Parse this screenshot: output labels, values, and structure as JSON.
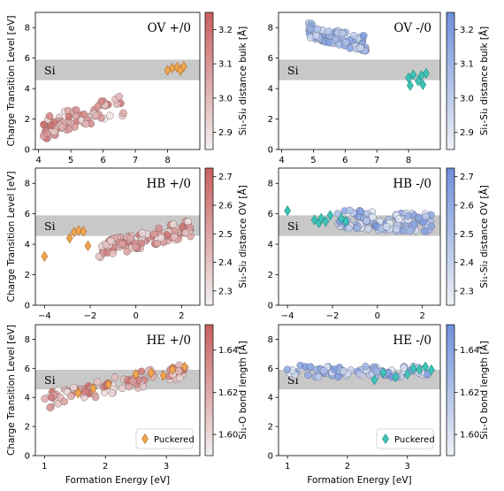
{
  "figure": {
    "xlabel": "Formation Energy [eV]",
    "ylabel": "Charge Transition Level [eV]",
    "band_label": "Si",
    "legend_label": "Puckered"
  },
  "colors": {
    "red_low": "#f2f0f0",
    "red_high": "#c95f5f",
    "blue_low": "#eff1f5",
    "blue_high": "#6e90dc",
    "puckered_orange": "#f0a552",
    "puckered_teal": "#3fc4b8",
    "band_gray": "#c8c8c8"
  },
  "chart_data": [
    {
      "type": "scatter",
      "title": "OV +/0",
      "colormap": "reds",
      "colorbar": {
        "label": "Si₁-Si₂ distance bulk [Å]",
        "ticks": [
          "2.9",
          "3.0",
          "3.1",
          "3.2"
        ],
        "range": [
          2.85,
          3.25
        ]
      },
      "xlim": [
        3.9,
        9.0
      ],
      "ylim": [
        0,
        9
      ],
      "xticks": [
        "4",
        "5",
        "6",
        "7",
        "8"
      ],
      "yticks": [
        "0",
        "2",
        "4",
        "6",
        "8"
      ],
      "band": [
        4.55,
        5.9
      ],
      "cloud": {
        "seed": 11,
        "n": 80,
        "x": [
          4.1,
          6.65
        ],
        "y_start": 1.35,
        "y_slope": 0.62,
        "spread": 0.9,
        "c_range": [
          2.86,
          3.22
        ]
      },
      "puckered": [
        [
          8.0,
          5.2
        ],
        [
          8.15,
          5.35
        ],
        [
          8.3,
          5.4
        ],
        [
          8.4,
          5.2
        ],
        [
          8.5,
          5.45
        ]
      ]
    },
    {
      "type": "scatter",
      "title": "OV -/0",
      "colormap": "blues",
      "colorbar": {
        "label": "Si₁-Si₂ distance bulk [Å]",
        "ticks": [
          "2.9",
          "3.0",
          "3.1",
          "3.2"
        ],
        "range": [
          2.85,
          3.25
        ]
      },
      "xlim": [
        3.9,
        9.0
      ],
      "ylim": [
        0,
        9
      ],
      "xticks": [
        "4",
        "5",
        "6",
        "7",
        "8"
      ],
      "yticks": [
        "0",
        "2",
        "4",
        "6",
        "8"
      ],
      "band": [
        4.55,
        5.9
      ],
      "cloud": {
        "seed": 23,
        "n": 80,
        "x": [
          4.8,
          6.65
        ],
        "y_start": 7.85,
        "y_slope": -0.5,
        "spread": 0.65,
        "c_range": [
          2.95,
          3.23
        ]
      },
      "puckered": [
        [
          8.0,
          4.7
        ],
        [
          8.05,
          4.2
        ],
        [
          8.15,
          4.9
        ],
        [
          8.3,
          4.5
        ],
        [
          8.4,
          4.85
        ],
        [
          8.45,
          4.25
        ],
        [
          8.55,
          5.0
        ]
      ]
    },
    {
      "type": "scatter",
      "title": "HB +/0",
      "colormap": "reds",
      "colorbar": {
        "label": "Si₁-Si₂ distance OV [Å]",
        "ticks": [
          "2.3",
          "2.4",
          "2.5",
          "2.6",
          "2.7"
        ],
        "range": [
          2.25,
          2.73
        ]
      },
      "xlim": [
        -4.4,
        2.8
      ],
      "ylim": [
        0,
        9
      ],
      "xticks": [
        "−4",
        "−2",
        "0",
        "2"
      ],
      "yticks": [
        "0",
        "2",
        "4",
        "6",
        "8"
      ],
      "band": [
        4.55,
        5.9
      ],
      "cloud": {
        "seed": 37,
        "n": 110,
        "x": [
          -1.7,
          2.4
        ],
        "y_start": 3.6,
        "y_slope": 0.35,
        "spread": 0.7,
        "c_range": [
          2.27,
          2.7
        ]
      },
      "puckered": [
        [
          -4.0,
          3.2
        ],
        [
          -2.9,
          4.4
        ],
        [
          -2.7,
          4.8
        ],
        [
          -2.5,
          4.9
        ],
        [
          -2.3,
          4.85
        ],
        [
          -2.1,
          3.9
        ]
      ]
    },
    {
      "type": "scatter",
      "title": "HB -/0",
      "colormap": "blues",
      "colorbar": {
        "label": "Si₁-Si₂ distance OV [Å]",
        "ticks": [
          "2.3",
          "2.4",
          "2.5",
          "2.6",
          "2.7"
        ],
        "range": [
          2.25,
          2.73
        ]
      },
      "xlim": [
        -4.4,
        2.8
      ],
      "ylim": [
        0,
        9
      ],
      "xticks": [
        "−4",
        "−2",
        "0",
        "2"
      ],
      "yticks": [
        "0",
        "2",
        "4",
        "6",
        "8"
      ],
      "band": [
        4.55,
        5.9
      ],
      "cloud": {
        "seed": 53,
        "n": 110,
        "x": [
          -1.8,
          2.4
        ],
        "y_start": 5.7,
        "y_slope": -0.08,
        "spread": 0.8,
        "c_range": [
          2.27,
          2.7
        ]
      },
      "puckered": [
        [
          -4.0,
          6.2
        ],
        [
          -2.8,
          5.6
        ],
        [
          -2.6,
          5.4
        ],
        [
          -2.5,
          5.7
        ],
        [
          -2.3,
          5.5
        ],
        [
          -2.1,
          5.9
        ],
        [
          -1.6,
          5.7
        ],
        [
          -1.4,
          5.5
        ]
      ]
    },
    {
      "type": "scatter",
      "title": "HE +/0",
      "colormap": "reds",
      "colorbar": {
        "label": "Si₁-O bond length [Å]",
        "ticks": [
          "1.60",
          "1.62",
          "1.64"
        ],
        "range": [
          1.59,
          1.652
        ]
      },
      "xlim": [
        0.85,
        3.55
      ],
      "ylim": [
        0,
        9
      ],
      "xticks": [
        "1",
        "2",
        "3"
      ],
      "yticks": [
        "0",
        "2",
        "4",
        "6",
        "8"
      ],
      "band": [
        4.55,
        5.9
      ],
      "cloud": {
        "seed": 71,
        "n": 90,
        "x": [
          0.95,
          3.35
        ],
        "y_start": 3.7,
        "y_slope": 0.95,
        "spread": 0.7,
        "c_range": [
          1.592,
          1.65
        ]
      },
      "puckered": [
        [
          1.55,
          4.3
        ],
        [
          1.8,
          4.6
        ],
        [
          2.05,
          4.9
        ],
        [
          2.5,
          5.6
        ],
        [
          2.75,
          5.7
        ],
        [
          2.95,
          5.5
        ],
        [
          3.1,
          5.9
        ],
        [
          3.3,
          6.1
        ]
      ],
      "legend": "lower right"
    },
    {
      "type": "scatter",
      "title": "HE -/0",
      "colormap": "blues",
      "colorbar": {
        "label": "Si₁-O bond length [Å]",
        "ticks": [
          "1.60",
          "1.62",
          "1.64"
        ],
        "range": [
          1.59,
          1.652
        ]
      },
      "xlim": [
        0.85,
        3.55
      ],
      "ylim": [
        0,
        9
      ],
      "xticks": [
        "1",
        "2",
        "3"
      ],
      "yticks": [
        "0",
        "2",
        "4",
        "6",
        "8"
      ],
      "band": [
        4.55,
        5.9
      ],
      "cloud": {
        "seed": 89,
        "n": 90,
        "x": [
          0.95,
          3.35
        ],
        "y_start": 5.8,
        "y_slope": 0.0,
        "spread": 0.5,
        "c_range": [
          1.592,
          1.65
        ]
      },
      "puckered": [
        [
          2.45,
          5.2
        ],
        [
          2.6,
          5.7
        ],
        [
          2.8,
          5.4
        ],
        [
          3.0,
          5.6
        ],
        [
          3.1,
          6.0
        ],
        [
          3.2,
          5.9
        ],
        [
          3.3,
          6.1
        ],
        [
          3.4,
          5.9
        ]
      ],
      "legend": "lower right"
    }
  ]
}
